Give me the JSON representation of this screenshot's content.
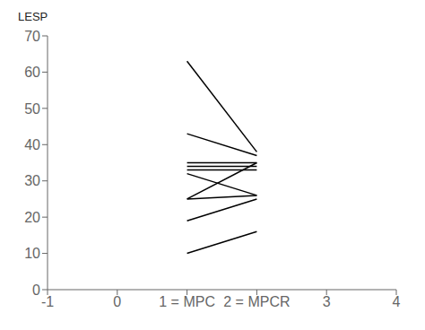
{
  "chart_data": {
    "type": "line",
    "ylabel": "LESP",
    "color": "#000000",
    "grid": false,
    "x": [
      1,
      2
    ],
    "series": [
      {
        "values": [
          63,
          38
        ]
      },
      {
        "values": [
          43,
          37
        ]
      },
      {
        "values": [
          35,
          35
        ]
      },
      {
        "values": [
          34,
          34
        ]
      },
      {
        "values": [
          33,
          33
        ]
      },
      {
        "values": [
          32,
          26
        ]
      },
      {
        "values": [
          25,
          35
        ]
      },
      {
        "values": [
          25,
          26
        ]
      },
      {
        "values": [
          19,
          25
        ]
      },
      {
        "values": [
          10,
          16
        ]
      }
    ],
    "xlim": [
      -1,
      4
    ],
    "xticks": [
      -1,
      0,
      {
        "value": 1,
        "label": "1 = MPC"
      },
      {
        "value": 2,
        "label": "2 = MPCR"
      },
      3,
      4
    ],
    "ylim": [
      0,
      70
    ],
    "yticks": [
      0,
      10,
      20,
      30,
      40,
      50,
      60,
      70
    ]
  }
}
